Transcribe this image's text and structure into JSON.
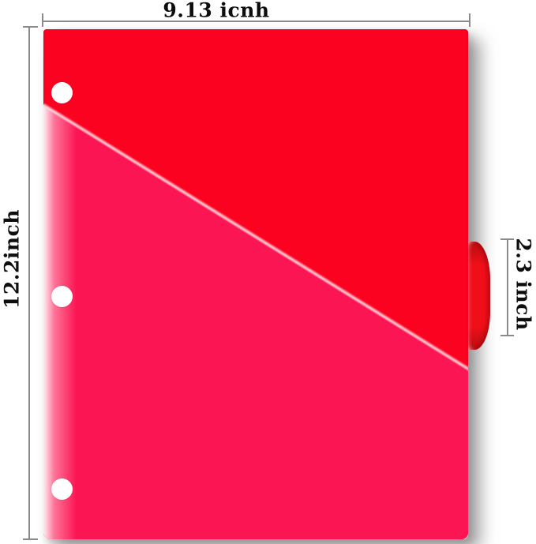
{
  "annotations": {
    "width_label": "9.13 icnh",
    "height_label": "12.2inch",
    "tab_label": "2.3 inch"
  },
  "folder": {
    "hole_count": 3,
    "pockets": 2
  },
  "colors": {
    "folder_red": "#fb0221",
    "pocket_pink": "#fc1553",
    "tab_red": "#f00f19",
    "tab_red_dark": "#bb0c11",
    "measure_line": "#8a8a8a",
    "label_text": "#0d0d0d",
    "hole_white": "#ffffff",
    "background": "#ffffff"
  }
}
